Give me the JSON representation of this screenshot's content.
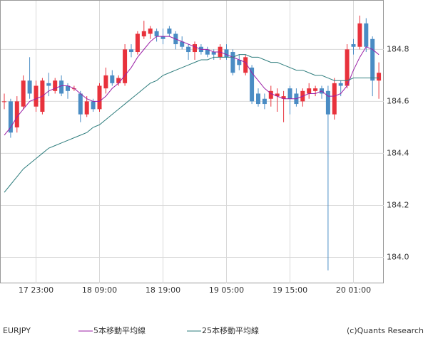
{
  "chart_data": {
    "type": "candlestick",
    "symbol": "EURJPY",
    "credit": "(c)Quants Research",
    "categories": [
      null,
      null,
      null,
      null,
      null,
      "17 23:00",
      null,
      null,
      null,
      null,
      null,
      null,
      null,
      null,
      null,
      "18 09:00",
      null,
      null,
      null,
      null,
      null,
      null,
      null,
      null,
      null,
      "18 19:00",
      null,
      null,
      null,
      null,
      null,
      null,
      null,
      null,
      null,
      "19 05:00",
      null,
      null,
      null,
      null,
      null,
      null,
      null,
      null,
      null,
      "19 15:00",
      null,
      null,
      null,
      null,
      null,
      null,
      null,
      null,
      null,
      "20 01:00",
      null,
      null,
      null,
      null
    ],
    "open": [
      184.6,
      184.6,
      184.5,
      184.58,
      184.68,
      184.58,
      184.56,
      184.67,
      184.64,
      184.68,
      184.66,
      184.65,
      184.63,
      184.55,
      184.6,
      184.57,
      184.65,
      184.7,
      184.67,
      184.67,
      184.8,
      184.79,
      184.85,
      184.86,
      184.87,
      184.85,
      184.88,
      184.86,
      184.83,
      184.81,
      184.79,
      184.81,
      184.8,
      184.79,
      184.77,
      184.8,
      184.79,
      184.76,
      184.71,
      184.73,
      184.63,
      184.61,
      184.61,
      184.62,
      184.61,
      184.65,
      184.63,
      184.6,
      184.63,
      184.64,
      184.65,
      184.64,
      184.55,
      184.67,
      184.66,
      184.82,
      184.81,
      184.9,
      184.84,
      184.68
    ],
    "high": [
      184.63,
      184.61,
      184.62,
      184.7,
      184.77,
      184.68,
      184.69,
      184.71,
      184.69,
      184.7,
      184.67,
      184.66,
      184.64,
      184.62,
      184.61,
      184.67,
      184.73,
      184.72,
      184.7,
      184.82,
      184.82,
      184.87,
      184.91,
      184.89,
      184.88,
      184.88,
      184.89,
      184.87,
      184.85,
      184.82,
      184.83,
      184.82,
      184.81,
      184.8,
      184.82,
      184.82,
      184.8,
      184.78,
      184.78,
      184.74,
      184.65,
      184.63,
      184.66,
      184.65,
      184.64,
      184.66,
      184.65,
      184.65,
      184.67,
      184.66,
      184.66,
      184.66,
      184.69,
      184.68,
      184.82,
      184.84,
      184.93,
      184.92,
      184.85,
      184.75
    ],
    "low": [
      184.57,
      184.46,
      184.48,
      184.57,
      184.61,
      184.56,
      184.55,
      184.62,
      184.63,
      184.62,
      184.61,
      184.64,
      184.52,
      184.54,
      184.56,
      184.56,
      184.63,
      184.66,
      184.66,
      184.66,
      184.77,
      184.78,
      184.84,
      184.84,
      184.83,
      184.82,
      184.85,
      184.8,
      184.8,
      184.76,
      184.76,
      184.78,
      184.77,
      184.76,
      184.76,
      184.76,
      184.7,
      184.72,
      184.7,
      184.59,
      184.58,
      184.57,
      184.58,
      184.56,
      184.52,
      184.55,
      184.58,
      184.58,
      184.61,
      184.62,
      184.61,
      183.95,
      184.53,
      184.62,
      184.65,
      184.78,
      184.8,
      184.79,
      184.62,
      184.61
    ],
    "close": [
      184.6,
      184.48,
      184.6,
      184.68,
      184.63,
      184.66,
      184.68,
      184.66,
      184.68,
      184.63,
      184.64,
      184.65,
      184.55,
      184.6,
      184.57,
      184.66,
      184.7,
      184.67,
      184.69,
      184.8,
      184.79,
      184.86,
      184.87,
      184.88,
      184.85,
      184.84,
      184.86,
      184.82,
      184.81,
      184.79,
      184.82,
      184.79,
      184.78,
      184.78,
      184.81,
      184.77,
      184.71,
      184.74,
      184.77,
      184.6,
      184.59,
      184.59,
      184.64,
      184.63,
      184.62,
      184.61,
      184.59,
      184.64,
      184.65,
      184.65,
      184.63,
      184.55,
      184.67,
      184.66,
      184.8,
      184.81,
      184.9,
      184.81,
      184.68,
      184.71
    ],
    "up_color": "#e8323c",
    "down_color": "#4a8cc4",
    "series": [
      {
        "name": "5本移動平均線",
        "color": "#9b1fa6",
        "values": [
          184.47,
          184.5,
          184.54,
          184.57,
          184.6,
          184.61,
          184.62,
          184.64,
          184.65,
          184.66,
          184.66,
          184.65,
          184.63,
          184.61,
          184.6,
          184.6,
          184.62,
          184.65,
          184.67,
          184.7,
          184.73,
          184.77,
          184.8,
          184.83,
          184.85,
          184.85,
          184.85,
          184.84,
          184.83,
          184.82,
          184.81,
          184.8,
          184.8,
          184.79,
          184.79,
          184.78,
          184.77,
          184.76,
          184.75,
          184.71,
          184.68,
          184.65,
          184.63,
          184.62,
          184.61,
          184.61,
          184.61,
          184.62,
          184.63,
          184.63,
          184.64,
          184.62,
          184.62,
          184.63,
          184.66,
          184.72,
          184.77,
          184.81,
          184.8,
          184.78
        ]
      },
      {
        "name": "25本移動平均線",
        "color": "#2e7d7d",
        "values": [
          184.25,
          184.28,
          184.31,
          184.34,
          184.36,
          184.38,
          184.4,
          184.42,
          184.43,
          184.44,
          184.45,
          184.46,
          184.47,
          184.48,
          184.5,
          184.51,
          184.53,
          184.55,
          184.57,
          184.59,
          184.61,
          184.63,
          184.65,
          184.67,
          184.68,
          184.7,
          184.71,
          184.72,
          184.73,
          184.74,
          184.75,
          184.76,
          184.76,
          184.77,
          184.77,
          184.77,
          184.77,
          184.78,
          184.78,
          184.77,
          184.77,
          184.76,
          184.75,
          184.75,
          184.74,
          184.73,
          184.72,
          184.72,
          184.71,
          184.7,
          184.7,
          184.69,
          184.68,
          184.68,
          184.68,
          184.69,
          184.69,
          184.69,
          184.69,
          184.69
        ]
      }
    ],
    "ylim": [
      183.9,
      184.99
    ],
    "yticks": [
      {
        "value": 184,
        "label": "184.0"
      },
      184.2,
      184.4,
      184.6,
      184.8
    ],
    "grid": true
  }
}
